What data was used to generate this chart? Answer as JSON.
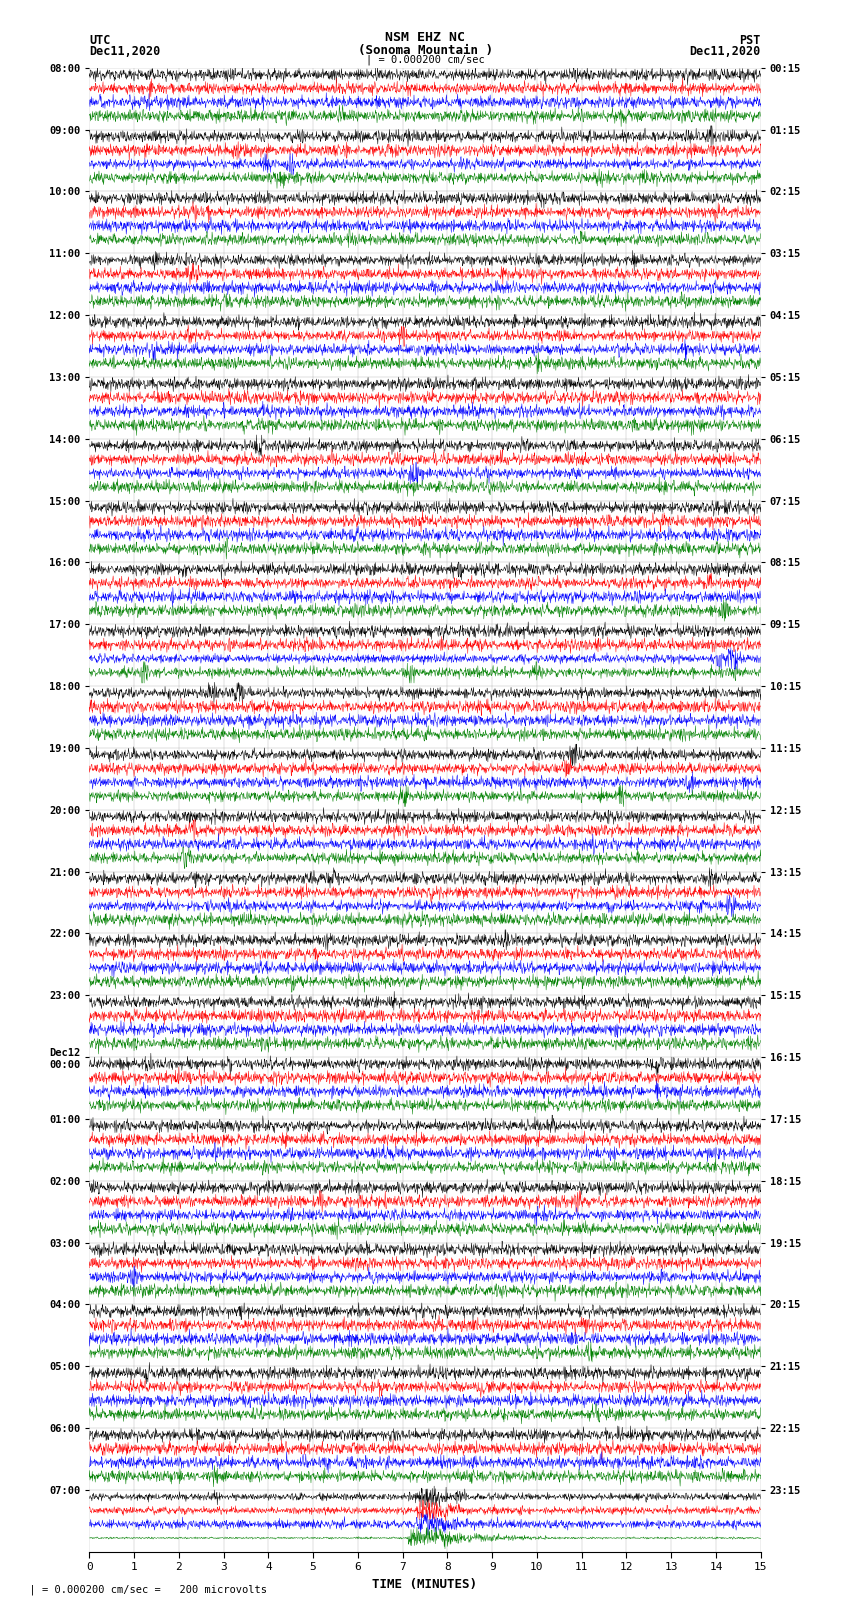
{
  "title_line1": "NSM EHZ NC",
  "title_line2": "(Sonoma Mountain )",
  "title_line3": "| = 0.000200 cm/sec",
  "left_header_line1": "UTC",
  "left_header_line2": "Dec11,2020",
  "right_header_line1": "PST",
  "right_header_line2": "Dec11,2020",
  "utc_labels": [
    "08:00",
    "09:00",
    "10:00",
    "11:00",
    "12:00",
    "13:00",
    "14:00",
    "15:00",
    "16:00",
    "17:00",
    "18:00",
    "19:00",
    "20:00",
    "21:00",
    "22:00",
    "23:00",
    "Dec12\n00:00",
    "01:00",
    "02:00",
    "03:00",
    "04:00",
    "05:00",
    "06:00",
    "07:00"
  ],
  "pst_labels": [
    "00:15",
    "01:15",
    "02:15",
    "03:15",
    "04:15",
    "05:15",
    "06:15",
    "07:15",
    "08:15",
    "09:15",
    "10:15",
    "11:15",
    "12:15",
    "13:15",
    "14:15",
    "15:15",
    "16:15",
    "17:15",
    "18:15",
    "19:15",
    "20:15",
    "21:15",
    "22:15",
    "23:15"
  ],
  "xlabel": "TIME (MINUTES)",
  "scale_label": "  | = 0.000200 cm/sec =   200 microvolts",
  "colors": [
    "black",
    "red",
    "blue",
    "green"
  ],
  "background_color": "white",
  "num_rows": 24,
  "traces_per_row": 4,
  "xlim": [
    0,
    15
  ],
  "xticks": [
    0,
    1,
    2,
    3,
    4,
    5,
    6,
    7,
    8,
    9,
    10,
    11,
    12,
    13,
    14,
    15
  ],
  "fig_width": 8.5,
  "fig_height": 16.13
}
